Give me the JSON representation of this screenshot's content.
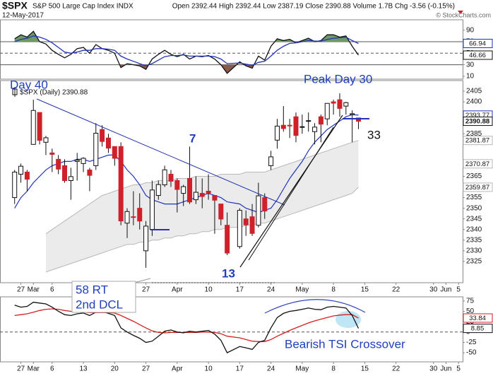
{
  "header": {
    "symbol": "$SPX",
    "name": "S&P 500 Large Cap Index INDX",
    "date": "12-May-2017",
    "quote": "Open 2392.44 High 2392.44 Low 2387.19 Close 2390.88 Volume 1.7B Chg -3.56 (-0.15%)",
    "credit": "© StockCharts.com"
  },
  "annotations": {
    "day40": "Day 40",
    "peak": "Peak Day 30",
    "seven": "7",
    "thirteen": "13",
    "thirtythree": "33",
    "callout_1": "58 RT",
    "callout_2": "2nd DCL",
    "tsi": "Bearish TSI Crossover"
  },
  "chart_data": [
    {
      "type": "line",
      "x": [
        "2017-02-24",
        "2017-02-27",
        "2017-02-28",
        "2017-03-01",
        "2017-03-02",
        "2017-03-03",
        "2017-03-06",
        "2017-03-07",
        "2017-03-08",
        "2017-03-09",
        "2017-03-10",
        "2017-03-13",
        "2017-03-14",
        "2017-03-15",
        "2017-03-16",
        "2017-03-17",
        "2017-03-20",
        "2017-03-21",
        "2017-03-22",
        "2017-03-23",
        "2017-03-24",
        "2017-03-27",
        "2017-03-28",
        "2017-03-29",
        "2017-03-30",
        "2017-03-31",
        "2017-04-03",
        "2017-04-04",
        "2017-04-05",
        "2017-04-06",
        "2017-04-07",
        "2017-04-10",
        "2017-04-11",
        "2017-04-12",
        "2017-04-13",
        "2017-04-17",
        "2017-04-18",
        "2017-04-19",
        "2017-04-20",
        "2017-04-21",
        "2017-04-24",
        "2017-04-25",
        "2017-04-26",
        "2017-04-27",
        "2017-04-28",
        "2017-05-01",
        "2017-05-02",
        "2017-05-03",
        "2017-05-04",
        "2017-05-05",
        "2017-05-08",
        "2017-05-09",
        "2017-05-10",
        "2017-05-11",
        "2017-05-12"
      ],
      "series": [
        {
          "color": "#111111",
          "values": [
            75,
            82,
            78,
            88,
            70,
            66,
            55,
            48,
            42,
            48,
            58,
            60,
            50,
            65,
            58,
            55,
            50,
            25,
            32,
            30,
            28,
            22,
            40,
            48,
            55,
            48,
            44,
            48,
            40,
            45,
            44,
            46,
            40,
            30,
            15,
            35,
            28,
            24,
            45,
            38,
            62,
            75,
            72,
            74,
            68,
            72,
            76,
            70,
            72,
            82,
            82,
            78,
            80,
            62,
            46.66
          ]
        },
        {
          "color": "#2233bb",
          "values": [
            70,
            74,
            76,
            80,
            78,
            74,
            68,
            60,
            52,
            50,
            52,
            55,
            55,
            58,
            58,
            57,
            55,
            45,
            40,
            36,
            32,
            28,
            32,
            38,
            44,
            46,
            46,
            47,
            45,
            45,
            45,
            45,
            44,
            40,
            32,
            33,
            31,
            29,
            34,
            36,
            45,
            55,
            62,
            67,
            68,
            70,
            72,
            71,
            71,
            74,
            76,
            77,
            78,
            72,
            66.94
          ]
        }
      ],
      "fills": [
        {
          "level": 70,
          "side": "above",
          "color": "#6f9a63"
        },
        {
          "level": 30,
          "side": "below",
          "color": "#8c5a4c"
        }
      ],
      "level_lines": [
        {
          "value": 70,
          "dash": false
        },
        {
          "value": 50,
          "dash": true
        },
        {
          "value": 30,
          "dash": false
        }
      ],
      "xlim": [
        "2017-02-22",
        "2017-06-06"
      ],
      "ylim": [
        5,
        108
      ],
      "yticks": [
        90,
        70,
        50,
        30,
        10
      ]
    },
    {
      "type": "candlestick",
      "legend": "$SPX (Daily) 2390.88",
      "x": [
        "2017-02-24",
        "2017-02-27",
        "2017-02-28",
        "2017-03-01",
        "2017-03-02",
        "2017-03-03",
        "2017-03-06",
        "2017-03-07",
        "2017-03-08",
        "2017-03-09",
        "2017-03-10",
        "2017-03-13",
        "2017-03-14",
        "2017-03-15",
        "2017-03-16",
        "2017-03-17",
        "2017-03-20",
        "2017-03-21",
        "2017-03-22",
        "2017-03-23",
        "2017-03-24",
        "2017-03-27",
        "2017-03-28",
        "2017-03-29",
        "2017-03-30",
        "2017-03-31",
        "2017-04-03",
        "2017-04-04",
        "2017-04-05",
        "2017-04-06",
        "2017-04-07",
        "2017-04-10",
        "2017-04-11",
        "2017-04-12",
        "2017-04-13",
        "2017-04-17",
        "2017-04-18",
        "2017-04-19",
        "2017-04-20",
        "2017-04-21",
        "2017-04-24",
        "2017-04-25",
        "2017-04-26",
        "2017-04-27",
        "2017-04-28",
        "2017-05-01",
        "2017-05-02",
        "2017-05-03",
        "2017-05-04",
        "2017-05-05",
        "2017-05-08",
        "2017-05-09",
        "2017-05-10",
        "2017-05-11",
        "2017-05-12"
      ],
      "open": [
        2355,
        2366,
        2367,
        2380,
        2395,
        2381,
        2376,
        2373,
        2370,
        2363,
        2372,
        2371,
        2368,
        2370,
        2387,
        2383,
        2379,
        2379,
        2343,
        2346,
        2350,
        2330,
        2340,
        2356,
        2361,
        2366,
        2363,
        2357,
        2364,
        2354,
        2357,
        2358,
        2356,
        2352,
        2342,
        2332,
        2345,
        2346,
        2342,
        2355,
        2370,
        2382,
        2389,
        2389,
        2393,
        2388,
        2391,
        2386,
        2393,
        2392,
        2400,
        2401,
        2398,
        2394,
        2392.44
      ],
      "high": [
        2368,
        2371,
        2368,
        2401,
        2395,
        2384,
        2378,
        2375,
        2373,
        2369,
        2376,
        2374,
        2369,
        2390,
        2389,
        2385,
        2379,
        2381,
        2350,
        2358,
        2357,
        2344,
        2363,
        2363,
        2370,
        2368,
        2364,
        2361,
        2379,
        2365,
        2364,
        2366,
        2356,
        2352,
        2348,
        2350,
        2349,
        2352,
        2362,
        2357,
        2377,
        2392,
        2398,
        2392,
        2395,
        2394,
        2395,
        2390,
        2394,
        2399,
        2401,
        2404,
        2400,
        2396,
        2392.44
      ],
      "low": [
        2352,
        2362,
        2358,
        2380,
        2380,
        2375,
        2367,
        2366,
        2362,
        2354,
        2363,
        2367,
        2358,
        2368,
        2379,
        2376,
        2370,
        2342,
        2336,
        2342,
        2340,
        2322,
        2337,
        2354,
        2360,
        2360,
        2348,
        2351,
        2352,
        2352,
        2350,
        2354,
        2338,
        2342,
        2328,
        2331,
        2337,
        2337,
        2341,
        2345,
        2368,
        2378,
        2386,
        2383,
        2381,
        2385,
        2386,
        2380,
        2381,
        2389,
        2394,
        2393,
        2394,
        2381,
        2387.19
      ],
      "close": [
        2367,
        2369.75,
        2363.64,
        2395.96,
        2381.92,
        2383.12,
        2375.31,
        2368.39,
        2362.98,
        2364.87,
        2372.6,
        2373.47,
        2365.45,
        2385.26,
        2381.38,
        2378.25,
        2373.47,
        2344.02,
        2348.45,
        2345.96,
        2343.98,
        2341.59,
        2358.57,
        2361.13,
        2368.06,
        2362.72,
        2358.84,
        2360.16,
        2352.95,
        2357.49,
        2355.54,
        2357.16,
        2353.78,
        2344.93,
        2328.95,
        2349.01,
        2342.19,
        2338.17,
        2355.84,
        2348.69,
        2374.15,
        2388.61,
        2387.45,
        2388.77,
        2384.2,
        2388.33,
        2391.17,
        2388.13,
        2389.52,
        2399.29,
        2399.38,
        2396.92,
        2399.63,
        2394.44,
        2390.88
      ],
      "up_color": "#ffffff",
      "down_color": "#d0202a",
      "ma": [
        2350,
        2355,
        2358,
        2362,
        2365,
        2368,
        2370,
        2371,
        2372,
        2372,
        2373,
        2373,
        2372,
        2373,
        2374,
        2375,
        2375,
        2372,
        2368,
        2365,
        2361,
        2356,
        2354,
        2353,
        2352,
        2352,
        2352,
        2353,
        2354,
        2355,
        2356,
        2357,
        2356,
        2355,
        2353,
        2352,
        2350,
        2349,
        2348,
        2349,
        2350,
        2354,
        2359,
        2364,
        2368,
        2372,
        2377,
        2381,
        2384,
        2387,
        2389,
        2391,
        2393,
        2394,
        2393.77
      ],
      "ma_color": "#2233bb",
      "band_upper": [
        null,
        null,
        null,
        null,
        null,
        2338,
        2340,
        2342,
        2344,
        2346,
        2348,
        2350,
        2352,
        2354,
        2356,
        2357,
        2358,
        2359,
        2360,
        2361,
        2361,
        2362,
        2362,
        2363,
        2363,
        2363,
        2364,
        2364,
        2364,
        2365,
        2365,
        2365,
        2365,
        2366,
        2366,
        2366,
        2367,
        2367,
        2367,
        2367,
        2368,
        2369,
        2370,
        2371,
        2372,
        2373,
        2374,
        2375,
        2376,
        2377,
        2378,
        2379,
        2380,
        2381,
        2381.87
      ],
      "band_lower": [
        null,
        null,
        null,
        null,
        null,
        2320,
        2321,
        2322,
        2323,
        2324,
        2325,
        2326,
        2327,
        2328,
        2329,
        2330,
        2331,
        2332,
        2333,
        2333,
        2334,
        2334,
        2335,
        2335,
        2336,
        2336,
        2337,
        2337,
        2338,
        2338,
        2339,
        2339,
        2340,
        2340,
        2341,
        2341,
        2342,
        2342,
        2343,
        2343,
        2344,
        2345,
        2346,
        2347,
        2348,
        2349,
        2350,
        2351,
        2352,
        2353,
        2354,
        2355,
        2356,
        2357,
        2359.87
      ],
      "band_middle": 2370.87,
      "band_color": "#b8b8b8",
      "band_fill": "#ebebeb",
      "xlim": [
        "2017-02-22",
        "2017-06-06"
      ],
      "ylim": [
        2315,
        2410
      ],
      "yticks": [
        2325,
        2330,
        2335,
        2340,
        2345,
        2350,
        2355,
        2365,
        2385,
        2400,
        2405
      ],
      "xticks": [
        {
          "value": "2017-02-27",
          "label": "27"
        },
        {
          "value": "2017-03-01",
          "label": "Mar"
        },
        {
          "value": "2017-03-06",
          "label": "6"
        },
        {
          "value": "2017-03-13",
          "label": "13"
        },
        {
          "value": "2017-03-20",
          "label": "20"
        },
        {
          "value": "2017-03-27",
          "label": "27"
        },
        {
          "value": "2017-04-03",
          "label": "Apr"
        },
        {
          "value": "2017-04-10",
          "label": "10"
        },
        {
          "value": "2017-04-17",
          "label": "17"
        },
        {
          "value": "2017-04-24",
          "label": "24"
        },
        {
          "value": "2017-05-01",
          "label": "May"
        },
        {
          "value": "2017-05-08",
          "label": "8"
        },
        {
          "value": "2017-05-15",
          "label": "15"
        },
        {
          "value": "2017-05-22",
          "label": "22"
        },
        {
          "value": "2017-05-30",
          "label": "30"
        },
        {
          "value": "2017-06-01",
          "label": "Jun"
        },
        {
          "value": "2017-06-05",
          "label": "5"
        }
      ]
    },
    {
      "type": "line",
      "x": [
        "2017-02-24",
        "2017-02-27",
        "2017-02-28",
        "2017-03-01",
        "2017-03-02",
        "2017-03-03",
        "2017-03-06",
        "2017-03-07",
        "2017-03-08",
        "2017-03-09",
        "2017-03-10",
        "2017-03-13",
        "2017-03-14",
        "2017-03-15",
        "2017-03-16",
        "2017-03-17",
        "2017-03-20",
        "2017-03-21",
        "2017-03-22",
        "2017-03-23",
        "2017-03-24",
        "2017-03-27",
        "2017-03-28",
        "2017-03-29",
        "2017-03-30",
        "2017-03-31",
        "2017-04-03",
        "2017-04-04",
        "2017-04-05",
        "2017-04-06",
        "2017-04-07",
        "2017-04-10",
        "2017-04-11",
        "2017-04-12",
        "2017-04-13",
        "2017-04-17",
        "2017-04-18",
        "2017-04-19",
        "2017-04-20",
        "2017-04-21",
        "2017-04-24",
        "2017-04-25",
        "2017-04-26",
        "2017-04-27",
        "2017-04-28",
        "2017-05-01",
        "2017-05-02",
        "2017-05-03",
        "2017-05-04",
        "2017-05-05",
        "2017-05-08",
        "2017-05-09",
        "2017-05-10",
        "2017-05-11",
        "2017-05-12"
      ],
      "series": [
        {
          "color": "#d62020",
          "values": [
            40,
            42,
            44,
            48,
            52,
            55,
            56,
            55,
            52,
            50,
            49,
            48,
            47,
            47,
            47,
            47,
            46,
            40,
            33,
            26,
            18,
            10,
            3,
            -1,
            -2,
            -1,
            -1,
            -1,
            -1,
            -1,
            0,
            0,
            -1,
            -4,
            -10,
            -14,
            -18,
            -22,
            -23,
            -23,
            -18,
            -10,
            -3,
            4,
            10,
            16,
            22,
            27,
            31,
            35,
            39,
            41,
            42,
            42,
            33.84
          ]
        },
        {
          "color": "#111111",
          "values": [
            65,
            60,
            62,
            72,
            70,
            68,
            60,
            50,
            42,
            40,
            44,
            46,
            40,
            48,
            50,
            45,
            40,
            10,
            0,
            -8,
            -15,
            -25,
            -22,
            -10,
            2,
            5,
            0,
            -2,
            2,
            0,
            2,
            4,
            -5,
            -20,
            -50,
            -35,
            -38,
            -42,
            -25,
            -20,
            10,
            35,
            45,
            50,
            52,
            55,
            58,
            55,
            54,
            60,
            62,
            60,
            58,
            40,
            8.85
          ]
        }
      ],
      "level_lines": [
        {
          "value": 0,
          "dash": true
        }
      ],
      "xlim": [
        "2017-02-22",
        "2017-06-06"
      ],
      "ylim": [
        -72,
        85
      ],
      "yticks": [
        75,
        50,
        25,
        0,
        -25,
        -50
      ],
      "xticks": [
        {
          "value": "2017-02-27",
          "label": "27"
        },
        {
          "value": "2017-03-01",
          "label": "Mar"
        },
        {
          "value": "2017-03-06",
          "label": "6"
        },
        {
          "value": "2017-03-13",
          "label": "13"
        },
        {
          "value": "2017-03-20",
          "label": "20"
        },
        {
          "value": "2017-03-27",
          "label": "27"
        },
        {
          "value": "2017-04-03",
          "label": "Apr"
        },
        {
          "value": "2017-04-10",
          "label": "10"
        },
        {
          "value": "2017-04-17",
          "label": "17"
        },
        {
          "value": "2017-04-24",
          "label": "24"
        },
        {
          "value": "2017-05-01",
          "label": "May"
        },
        {
          "value": "2017-05-08",
          "label": "8"
        },
        {
          "value": "2017-05-15",
          "label": "15"
        },
        {
          "value": "2017-05-22",
          "label": "22"
        },
        {
          "value": "2017-05-30",
          "label": "30"
        },
        {
          "value": "2017-06-01",
          "label": "Jun"
        },
        {
          "value": "2017-06-05",
          "label": "5"
        }
      ]
    }
  ]
}
